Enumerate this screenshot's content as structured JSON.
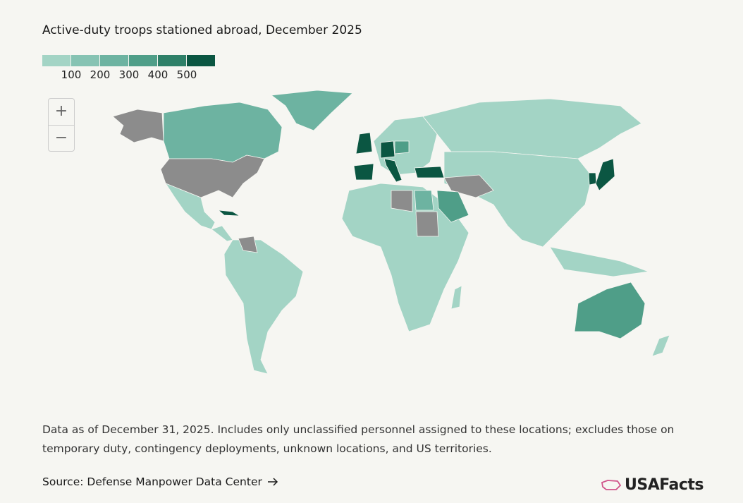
{
  "title": "Active-duty troops stationed abroad, December 2025",
  "legend": {
    "colors": [
      "#a3d4c5",
      "#86c3b3",
      "#6db3a1",
      "#4f9e88",
      "#2e8068",
      "#0b5642"
    ],
    "ticks": [
      100,
      200,
      300,
      400,
      500
    ]
  },
  "zoom_controls": {
    "zoom_in": "+",
    "zoom_out": "−"
  },
  "note": "Data as of December 31, 2025. Includes only unclassified personnel assigned to these locations; excludes those on temporary duty, contingency deployments, unknown locations, and US territories.",
  "source": "Source: Defense Manpower Data Center",
  "logo": "USAFacts"
}
